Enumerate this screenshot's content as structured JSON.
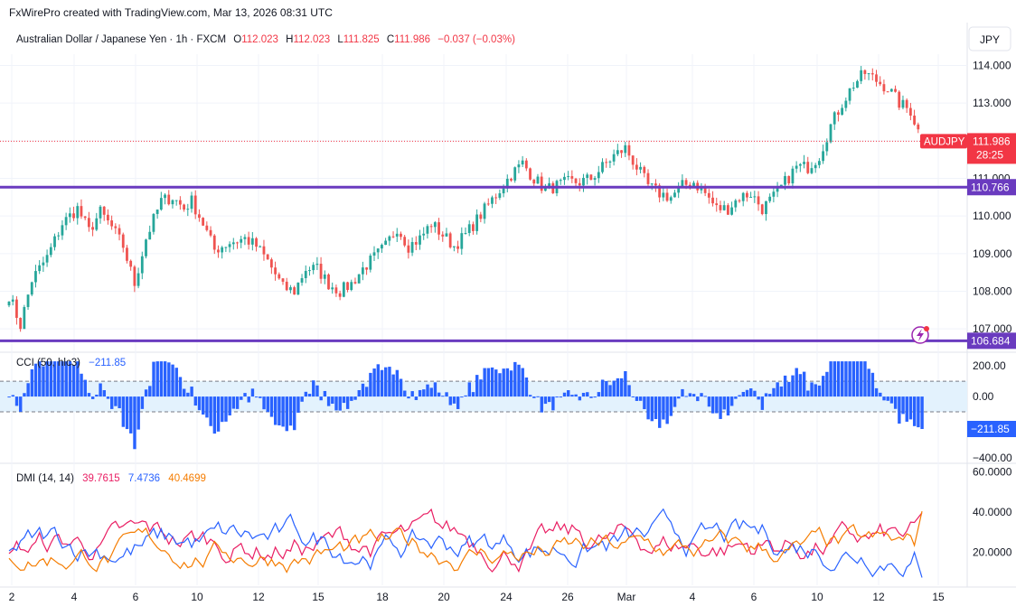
{
  "header": {
    "watermark": "FxWirePro created with TradingView.com, Mar 13, 2026 08:31 UTC",
    "symbol_title": "Australian Dollar / Japanese Yen · 1h · FXCM",
    "ohlc": {
      "o_label": "O",
      "o": "112.023",
      "h_label": "H",
      "h": "112.023",
      "l_label": "L",
      "l": "111.825",
      "c_label": "C",
      "c": "111.986",
      "change": "−0.037 (−0.03%)"
    },
    "currency_button": "JPY"
  },
  "colors": {
    "up": "#26a69a",
    "down": "#ef5350",
    "sr_line": "#6a3bbf",
    "cci": "#2962ff",
    "cci_band": "#e3f2fd",
    "dmi_plus": "#e91e63",
    "dmi_minus": "#2962ff",
    "adx": "#f57c00",
    "price_badge": "#f23645",
    "grid": "#f0f3fa",
    "axis_text": "#131722"
  },
  "chart_data": [
    {
      "type": "candlestick",
      "name": "AUDJPY",
      "x_ticks": [
        "2",
        "4",
        "6",
        "10",
        "12",
        "15",
        "18",
        "20",
        "24",
        "26",
        "Mar",
        "4",
        "6",
        "10",
        "12",
        "15"
      ],
      "y_ticks": [
        "114.000",
        "113.000",
        "112.000",
        "111.000",
        "110.000",
        "109.000",
        "108.000",
        "107.000"
      ],
      "ylim": [
        106.5,
        114.3
      ],
      "close_path": [
        [
          0,
          107.9
        ],
        [
          3,
          107.1
        ],
        [
          6,
          108.3
        ],
        [
          10,
          108.9
        ],
        [
          14,
          109.8
        ],
        [
          18,
          110.2
        ],
        [
          21,
          109.6
        ],
        [
          24,
          110.1
        ],
        [
          27,
          109.7
        ],
        [
          30,
          109.2
        ],
        [
          33,
          108.2
        ],
        [
          36,
          109.4
        ],
        [
          40,
          110.4
        ],
        [
          43,
          110.5
        ],
        [
          46,
          110.2
        ],
        [
          48,
          110.4
        ],
        [
          51,
          109.8
        ],
        [
          54,
          109.1
        ],
        [
          58,
          109.3
        ],
        [
          62,
          109.4
        ],
        [
          65,
          109.2
        ],
        [
          68,
          108.8
        ],
        [
          72,
          108.1
        ],
        [
          75,
          108.0
        ],
        [
          78,
          108.6
        ],
        [
          81,
          108.6
        ],
        [
          84,
          108.2
        ],
        [
          87,
          108.0
        ],
        [
          90,
          108.2
        ],
        [
          93,
          108.6
        ],
        [
          96,
          108.9
        ],
        [
          99,
          109.2
        ],
        [
          102,
          109.7
        ],
        [
          105,
          109.2
        ],
        [
          108,
          109.4
        ],
        [
          111,
          109.8
        ],
        [
          114,
          109.5
        ],
        [
          117,
          109.2
        ],
        [
          120,
          109.5
        ],
        [
          123,
          109.9
        ],
        [
          126,
          110.3
        ],
        [
          129,
          110.7
        ],
        [
          132,
          111.1
        ],
        [
          135,
          111.4
        ],
        [
          138,
          111.0
        ],
        [
          141,
          110.7
        ],
        [
          144,
          110.8
        ],
        [
          147,
          110.9
        ],
        [
          150,
          110.9
        ],
        [
          153,
          111.0
        ],
        [
          156,
          111.3
        ],
        [
          159,
          111.6
        ],
        [
          162,
          111.8
        ],
        [
          165,
          111.3
        ],
        [
          168,
          110.8
        ],
        [
          171,
          110.6
        ],
        [
          174,
          110.5
        ],
        [
          177,
          110.8
        ],
        [
          180,
          110.9
        ],
        [
          183,
          110.6
        ],
        [
          186,
          110.2
        ],
        [
          189,
          110.2
        ],
        [
          192,
          110.5
        ],
        [
          195,
          110.6
        ],
        [
          198,
          110.2
        ],
        [
          201,
          110.5
        ],
        [
          204,
          110.9
        ],
        [
          207,
          111.3
        ],
        [
          210,
          111.3
        ],
        [
          213,
          111.6
        ],
        [
          216,
          112.4
        ],
        [
          219,
          113.0
        ],
        [
          222,
          113.5
        ],
        [
          225,
          113.8
        ],
        [
          228,
          113.6
        ],
        [
          231,
          113.4
        ],
        [
          234,
          113.0
        ],
        [
          237,
          112.8
        ],
        [
          240,
          112.0
        ]
      ],
      "last_candle": {
        "open": 112.023,
        "high": 112.023,
        "low": 111.825,
        "close": 111.986
      },
      "horizontal_levels": [
        110.766,
        106.684
      ],
      "price_label": {
        "symbol": "AUDJPY",
        "value": "111.986",
        "countdown": "28:25"
      },
      "level_labels": [
        "110.766",
        "106.684"
      ]
    },
    {
      "type": "histogram",
      "name": "CCI",
      "legend": {
        "label": "CCI (50, hlc3)",
        "value": "−211.85"
      },
      "y_ticks": [
        "200.00",
        "0.00",
        "−200.00",
        "−400.00"
      ],
      "ylim": [
        -430,
        260
      ],
      "band": [
        -100,
        100
      ],
      "last_value": -211.85
    },
    {
      "type": "line",
      "name": "DMI",
      "legend": {
        "label": "DMI (14, 14)",
        "plus_di": "39.7615",
        "minus_di": "7.4736",
        "adx": "40.4699"
      },
      "y_ticks": [
        "60.0000",
        "40.0000",
        "20.0000"
      ],
      "ylim": [
        5,
        63
      ],
      "last_values": {
        "plus_di": 39.7615,
        "minus_di": 7.4736,
        "adx": 40.4699
      }
    }
  ]
}
